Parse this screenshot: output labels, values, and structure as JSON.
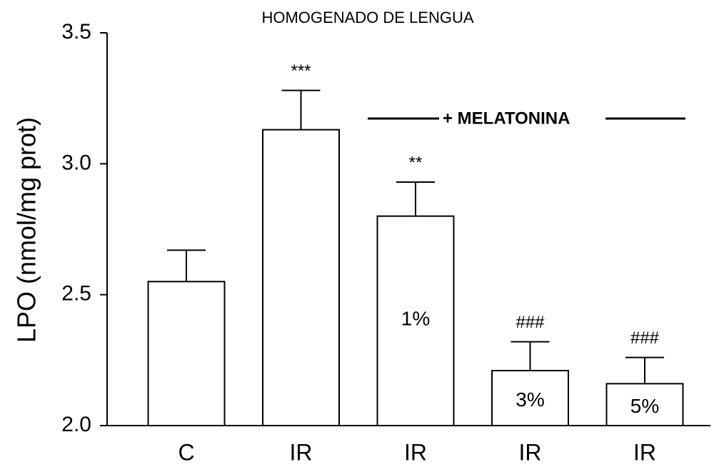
{
  "chart_data": {
    "type": "bar",
    "title": "HOMOGENADO DE LENGUA",
    "ylabel": "LPO (nmol/mg prot)",
    "categories": [
      "C",
      "IR",
      "IR",
      "IR",
      "IR"
    ],
    "values": [
      2.55,
      3.13,
      2.8,
      2.21,
      2.16
    ],
    "errors": [
      0.12,
      0.15,
      0.13,
      0.11,
      0.1
    ],
    "significance": [
      null,
      "***",
      "**",
      "###",
      "###"
    ],
    "bar_labels": [
      null,
      null,
      "1%",
      "3%",
      "5%"
    ],
    "annotation": "+ MELATONINA",
    "color": "#ffffff",
    "ylim": [
      2.0,
      3.5
    ],
    "yticks": [
      {
        "value": 2,
        "label": "2.0"
      },
      2.5,
      {
        "value": 3,
        "label": "3.0"
      },
      3.5
    ],
    "grid": false
  }
}
